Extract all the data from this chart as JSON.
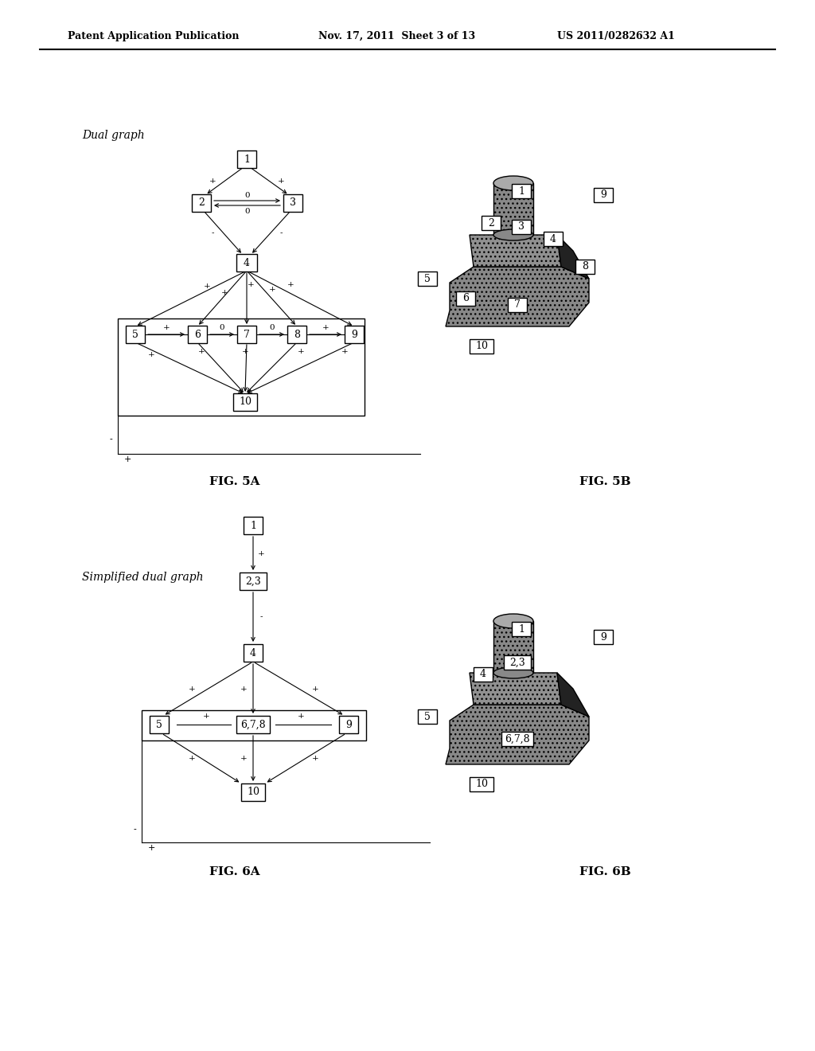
{
  "header_left": "Patent Application Publication",
  "header_mid": "Nov. 17, 2011  Sheet 3 of 13",
  "header_right": "US 2011/0282632 A1",
  "fig5a_label": "FIG. 5A",
  "fig5b_label": "FIG. 5B",
  "fig6a_label": "FIG. 6A",
  "fig6b_label": "FIG. 6B",
  "dual_graph_label": "Dual graph",
  "simplified_dual_graph_label": "Simplified dual graph",
  "bg_color": "#ffffff"
}
